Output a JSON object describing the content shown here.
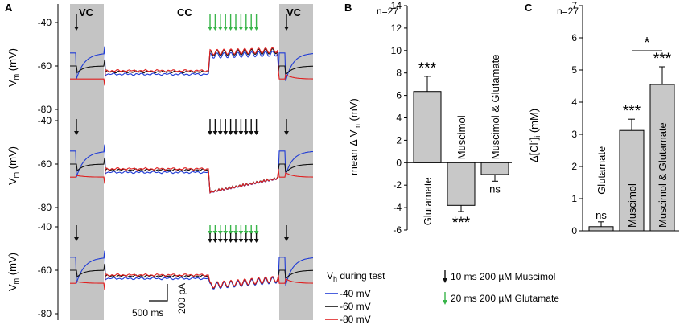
{
  "colors": {
    "blue": "#1f3bd6",
    "black": "#111111",
    "red": "#e02020",
    "green": "#39b54a",
    "bar": "#c8c8c8",
    "shade": "#c4c4c4"
  },
  "panel_a": {
    "label": "A",
    "vc_left": "VC",
    "cc": "CC",
    "vc_right": "VC",
    "ylabel": "Vm (mV)",
    "ylabel_main": "V",
    "ylabel_sub": "m",
    "ylabel_unit": " (mV)",
    "ticks": [
      "-40",
      "-60",
      "-80"
    ],
    "scale_time": "500 ms",
    "scale_current": "200 pA",
    "legend_title": "Vh during test",
    "legend_title_a": "V",
    "legend_title_sub": "h",
    "legend_title_b": " during test",
    "legend": [
      {
        "label": "-40 mV",
        "color": "#1f3bd6"
      },
      {
        "label": "-60 mV",
        "color": "#111111"
      },
      {
        "label": "-80 mV",
        "color": "#e02020"
      }
    ],
    "stim_legend": [
      {
        "label": "10 ms 200 µM Muscimol",
        "color": "#111111"
      },
      {
        "label": "20 ms 200 µM Glutamate",
        "color": "#39b54a"
      }
    ],
    "rows": [
      {
        "stim": "glutamate",
        "n_arrows": 10
      },
      {
        "stim": "muscimol",
        "n_arrows": 10
      },
      {
        "stim": "both",
        "n_arrows": 10
      }
    ]
  },
  "chart_data": [
    {
      "panel": "B",
      "type": "bar",
      "annotation": "n=27",
      "ylabel": "mean ΔVm (mV)",
      "ylabel_a": "mean Δ V",
      "ylabel_sub": "m",
      "ylabel_b": " (mV)",
      "ylim": [
        -6,
        14
      ],
      "yticks": [
        "14",
        "12",
        "10",
        "8",
        "6",
        "4",
        "2",
        "0",
        "-2",
        "-4",
        "-6"
      ],
      "categories": [
        "Glutamate",
        "Muscimol",
        "Muscimol & Glutamate"
      ],
      "values": [
        6.35,
        -3.8,
        -1.05
      ],
      "errors": [
        1.35,
        0.55,
        0.6
      ],
      "significance": [
        "***",
        "***",
        "ns"
      ]
    },
    {
      "panel": "C",
      "type": "bar",
      "annotation": "n=27",
      "ylabel": "Δ[Cl-]i (mM)",
      "ylabel_a": "Δ[Cl",
      "ylabel_sup": "-",
      "ylabel_b": "]",
      "ylabel_sub": "i",
      "ylabel_c": " (mM)",
      "ylim": [
        0,
        7
      ],
      "yticks": [
        "7",
        "6",
        "5",
        "4",
        "3",
        "2",
        "1",
        "0"
      ],
      "categories": [
        "Glutamate",
        "Muscimol",
        "Muscimol & Glutamate"
      ],
      "values": [
        0.13,
        3.12,
        4.55
      ],
      "errors": [
        0.15,
        0.35,
        0.55
      ],
      "significance": [
        "ns",
        "***",
        "***"
      ],
      "comparison": {
        "between": [
          "Muscimol",
          "Muscimol & Glutamate"
        ],
        "label": "*"
      }
    }
  ]
}
